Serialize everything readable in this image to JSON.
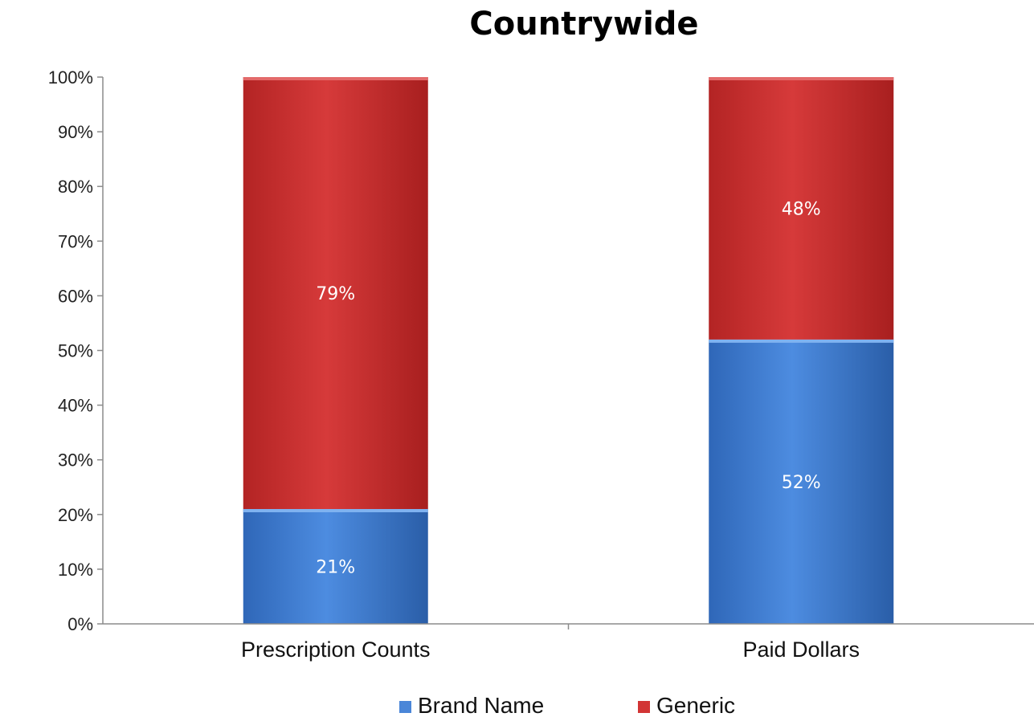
{
  "chart_data": {
    "type": "bar",
    "stacked": true,
    "title": "Countrywide",
    "categories": [
      "Prescription Counts",
      "Paid Dollars"
    ],
    "series": [
      {
        "name": "Brand Name",
        "values": [
          21,
          52
        ],
        "labels": [
          "21%",
          "52%"
        ],
        "color": "#4a86d8"
      },
      {
        "name": "Generic",
        "values": [
          79,
          48
        ],
        "labels": [
          "79%",
          "48%"
        ],
        "color": "#d23535"
      }
    ],
    "ylim": [
      0,
      100
    ],
    "yticks": [
      0,
      10,
      20,
      30,
      40,
      50,
      60,
      70,
      80,
      90,
      100
    ],
    "ytick_labels": [
      "0%",
      "10%",
      "20%",
      "30%",
      "40%",
      "50%",
      "60%",
      "70%",
      "80%",
      "90%",
      "100%"
    ],
    "grid": false,
    "legend_position": "bottom"
  }
}
